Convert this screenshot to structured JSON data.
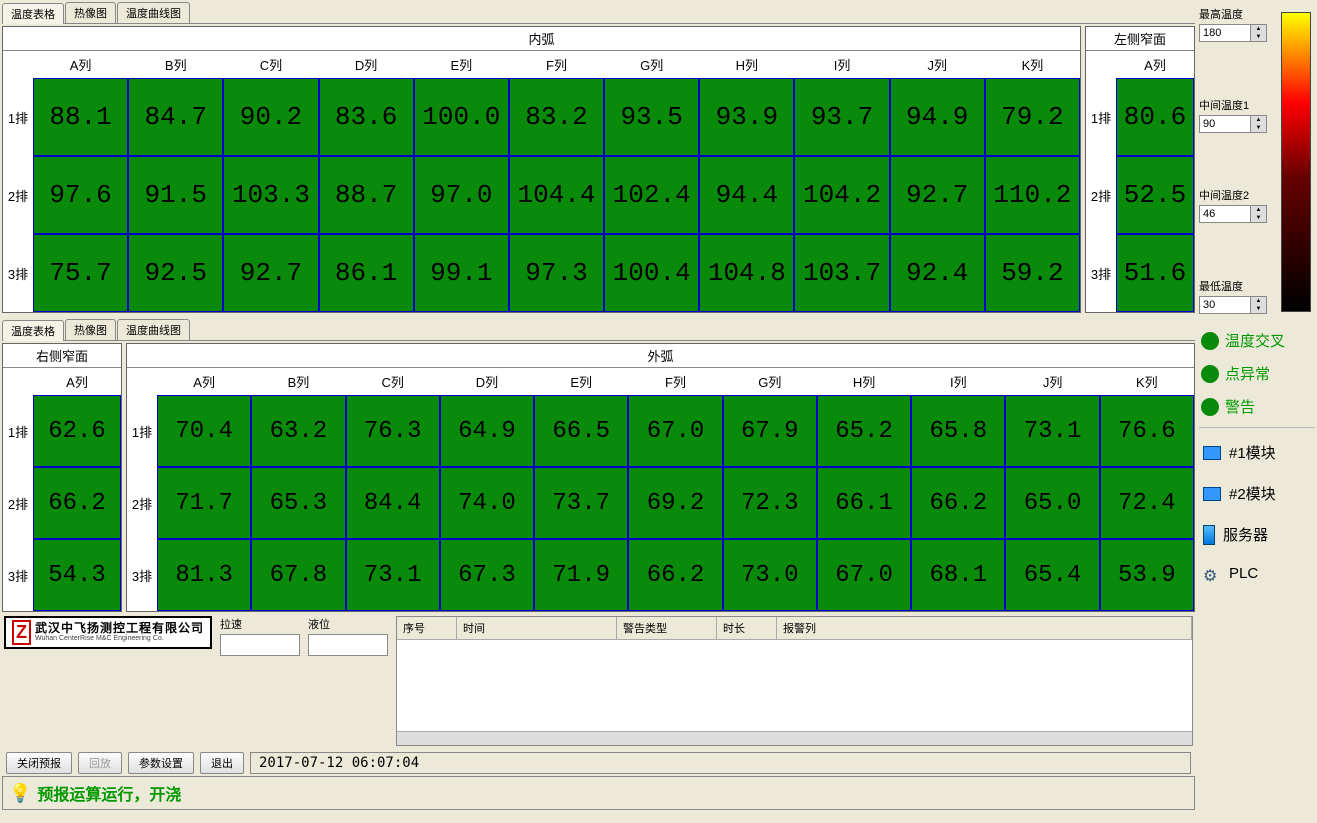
{
  "tabs": [
    "温度表格",
    "热像图",
    "温度曲线图"
  ],
  "topSection": {
    "innerArc": {
      "title": "内弧",
      "cols": [
        "A列",
        "B列",
        "C列",
        "D列",
        "E列",
        "F列",
        "G列",
        "H列",
        "I列",
        "J列",
        "K列"
      ],
      "rows": [
        "1排",
        "2排",
        "3排"
      ],
      "data": [
        [
          "88.1",
          "84.7",
          "90.2",
          "83.6",
          "100.0",
          "83.2",
          "93.5",
          "93.9",
          "93.7",
          "94.9",
          "79.2"
        ],
        [
          "97.6",
          "91.5",
          "103.3",
          "88.7",
          "97.0",
          "104.4",
          "102.4",
          "94.4",
          "104.2",
          "92.7",
          "110.2"
        ],
        [
          "75.7",
          "92.5",
          "92.7",
          "86.1",
          "99.1",
          "97.3",
          "100.4",
          "104.8",
          "103.7",
          "92.4",
          "59.2"
        ]
      ]
    },
    "leftNarrow": {
      "title": "左侧窄面",
      "cols": [
        "A列"
      ],
      "rows": [
        "1排",
        "2排",
        "3排"
      ],
      "data": [
        [
          "80.6"
        ],
        [
          "52.5"
        ],
        [
          "51.6"
        ]
      ]
    }
  },
  "bottomSection": {
    "rightNarrow": {
      "title": "右侧窄面",
      "cols": [
        "A列"
      ],
      "rows": [
        "1排",
        "2排",
        "3排"
      ],
      "data": [
        [
          "62.6"
        ],
        [
          "66.2"
        ],
        [
          "54.3"
        ]
      ]
    },
    "outerArc": {
      "title": "外弧",
      "cols": [
        "A列",
        "B列",
        "C列",
        "D列",
        "E列",
        "F列",
        "G列",
        "H列",
        "I列",
        "J列",
        "K列"
      ],
      "rows": [
        "1排",
        "2排",
        "3排"
      ],
      "data": [
        [
          "70.4",
          "63.2",
          "76.3",
          "64.9",
          "66.5",
          "67.0",
          "67.9",
          "65.2",
          "65.8",
          "73.1",
          "76.6"
        ],
        [
          "71.7",
          "65.3",
          "84.4",
          "74.0",
          "73.7",
          "69.2",
          "72.3",
          "66.1",
          "66.2",
          "65.0",
          "72.4"
        ],
        [
          "81.3",
          "67.8",
          "73.1",
          "67.3",
          "71.9",
          "66.2",
          "73.0",
          "67.0",
          "68.1",
          "65.4",
          "53.9"
        ]
      ]
    }
  },
  "scale": {
    "maxLabel": "最高温度",
    "maxVal": "180",
    "mid1Label": "中间温度1",
    "mid1Val": "90",
    "mid2Label": "中间温度2",
    "mid2Val": "46",
    "minLabel": "最低温度",
    "minVal": "30"
  },
  "legend": {
    "cross": "温度交叉",
    "pointAbn": "点异常",
    "warn": "警告"
  },
  "modules": {
    "m1": "#1模块",
    "m2": "#2模块",
    "server": "服务器",
    "plc": "PLC"
  },
  "company": {
    "cn": "武汉中飞扬测控工程有限公司",
    "en": "Wuhan CenterRise M&C Engineering Co."
  },
  "fields": {
    "laSpeed": "拉速",
    "level": "液位"
  },
  "alarmCols": {
    "seq": "序号",
    "time": "时间",
    "type": "警告类型",
    "dur": "时长",
    "col": "报警列"
  },
  "controls": {
    "closeForecast": "关闭预报",
    "playback": "回放",
    "params": "参数设置",
    "exit": "退出"
  },
  "timestamp": "2017-07-12 06:07:04",
  "status": "预报运算运行，开浇",
  "colors": {
    "cell_bg": "#0a8a0a",
    "cell_border": "#0000cc",
    "status_text": "#009900"
  }
}
